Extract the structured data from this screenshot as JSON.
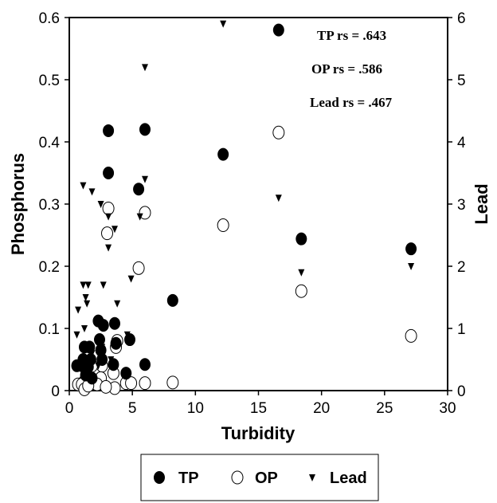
{
  "chart_data": {
    "type": "scatter",
    "xlabel": "Turbidity",
    "ylabel_left": "Phosphorus",
    "ylabel_right": "Lead",
    "xlim": [
      0,
      30
    ],
    "ylim_left": [
      0,
      0.6
    ],
    "ylim_right": [
      0,
      6
    ],
    "x_ticks": [
      "0",
      "5",
      "10",
      "15",
      "20",
      "25",
      "30"
    ],
    "y_left_ticks": [
      "0",
      "0.1",
      "0.2",
      "0.3",
      "0.4",
      "0.5",
      "0.6"
    ],
    "y_right_ticks": [
      "0",
      "1",
      "2",
      "3",
      "4",
      "5",
      "6"
    ],
    "grid": false,
    "legend_position": "bottom",
    "annotations": [
      "TP rs = .643",
      "OP rs = .586",
      "Lead rs = .467"
    ],
    "series": [
      {
        "name": "TP",
        "axis": "left",
        "marker": "filled-circle",
        "points": [
          [
            16.6,
            0.58
          ],
          [
            3.1,
            0.418
          ],
          [
            6.0,
            0.42
          ],
          [
            3.1,
            0.35
          ],
          [
            12.2,
            0.38
          ],
          [
            5.5,
            0.324
          ],
          [
            18.4,
            0.244
          ],
          [
            27.1,
            0.228
          ],
          [
            8.2,
            0.145
          ],
          [
            2.3,
            0.112
          ],
          [
            2.7,
            0.105
          ],
          [
            3.6,
            0.108
          ],
          [
            4.8,
            0.082
          ],
          [
            3.7,
            0.076
          ],
          [
            2.4,
            0.082
          ],
          [
            1.2,
            0.07
          ],
          [
            1.6,
            0.07
          ],
          [
            2.5,
            0.065
          ],
          [
            1.1,
            0.05
          ],
          [
            1.7,
            0.05
          ],
          [
            0.6,
            0.04
          ],
          [
            1.0,
            0.04
          ],
          [
            1.5,
            0.038
          ],
          [
            2.6,
            0.05
          ],
          [
            3.5,
            0.042
          ],
          [
            6.0,
            0.042
          ],
          [
            4.5,
            0.028
          ],
          [
            1.3,
            0.025
          ],
          [
            1.8,
            0.02
          ]
        ]
      },
      {
        "name": "OP",
        "axis": "left",
        "marker": "open-circle",
        "points": [
          [
            16.6,
            0.415
          ],
          [
            6.0,
            0.286
          ],
          [
            3.1,
            0.293
          ],
          [
            3.0,
            0.253
          ],
          [
            12.2,
            0.266
          ],
          [
            5.5,
            0.197
          ],
          [
            18.4,
            0.16
          ],
          [
            27.1,
            0.088
          ],
          [
            3.8,
            0.08
          ],
          [
            3.7,
            0.07
          ],
          [
            2.6,
            0.04
          ],
          [
            1.8,
            0.04
          ],
          [
            3.5,
            0.028
          ],
          [
            2.5,
            0.02
          ],
          [
            1.2,
            0.015
          ],
          [
            0.7,
            0.01
          ],
          [
            1.0,
            0.01
          ],
          [
            2.2,
            0.01
          ],
          [
            4.5,
            0.012
          ],
          [
            4.9,
            0.012
          ],
          [
            6.0,
            0.012
          ],
          [
            8.2,
            0.013
          ],
          [
            1.2,
            0.002
          ],
          [
            3.6,
            0.004
          ],
          [
            1.5,
            0.008
          ],
          [
            2.9,
            0.006
          ]
        ]
      },
      {
        "name": "Lead",
        "axis": "right",
        "marker": "filled-triangle-down",
        "points": [
          [
            12.2,
            5.9
          ],
          [
            6.0,
            5.2
          ],
          [
            16.6,
            3.1
          ],
          [
            6.0,
            3.4
          ],
          [
            1.1,
            3.3
          ],
          [
            1.8,
            3.2
          ],
          [
            2.5,
            3.0
          ],
          [
            3.1,
            2.8
          ],
          [
            5.6,
            2.8
          ],
          [
            3.6,
            2.6
          ],
          [
            3.1,
            2.3
          ],
          [
            18.4,
            1.9
          ],
          [
            27.1,
            2.0
          ],
          [
            1.1,
            1.7
          ],
          [
            1.5,
            1.7
          ],
          [
            2.7,
            1.7
          ],
          [
            4.9,
            1.8
          ],
          [
            1.3,
            1.5
          ],
          [
            1.4,
            1.4
          ],
          [
            3.8,
            1.4
          ],
          [
            0.7,
            1.3
          ],
          [
            1.2,
            1.0
          ],
          [
            0.6,
            0.9
          ],
          [
            2.6,
            0.7
          ],
          [
            1.8,
            0.6
          ],
          [
            3.3,
            0.5
          ],
          [
            2.3,
            0.4
          ],
          [
            4.6,
            0.9
          ]
        ]
      }
    ]
  },
  "legend": {
    "items": [
      {
        "label": "TP",
        "marker": "filled-circle"
      },
      {
        "label": "OP",
        "marker": "open-circle"
      },
      {
        "label": "Lead",
        "marker": "filled-triangle-down"
      }
    ]
  },
  "colors": {
    "ink": "#000000",
    "background": "#ffffff"
  }
}
